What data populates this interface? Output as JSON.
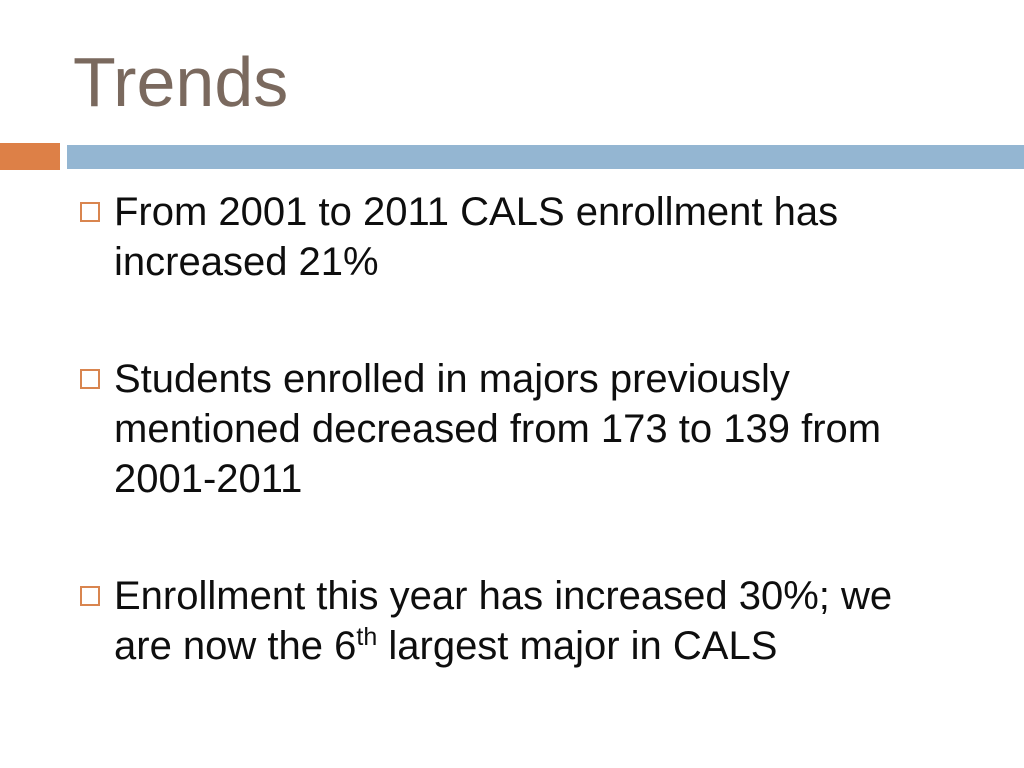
{
  "slide": {
    "title": "Trends",
    "bullets": [
      {
        "segments": [
          {
            "text": "From 2001 to 2011 CALS enrollment has increased 21%",
            "sup": false
          }
        ]
      },
      {
        "segments": [
          {
            "text": "Students enrolled in majors previously mentioned decreased from 173 to 139 from 2001-2011",
            "sup": false
          }
        ]
      },
      {
        "segments": [
          {
            "text": "Enrollment this year has increased 30%; we are now the 6",
            "sup": false
          },
          {
            "text": "th",
            "sup": true
          },
          {
            "text": " largest major in CALS",
            "sup": false
          }
        ]
      }
    ],
    "colors": {
      "background": "#ffffff",
      "title_text": "#7a695e",
      "accent_orange": "#dd8047",
      "band_blue": "#94b6d2",
      "bullet_border": "#d9854f",
      "body_text": "#0e0e0e"
    }
  }
}
